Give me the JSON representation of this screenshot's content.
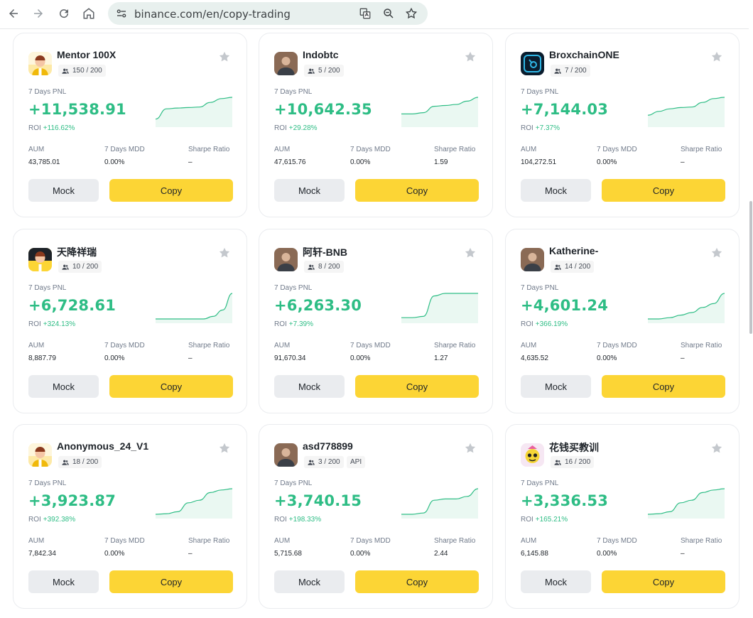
{
  "browser": {
    "url": "binance.com/en/copy-trading"
  },
  "labels": {
    "pnl": "7 Days PNL",
    "roi": "ROI",
    "aum": "AUM",
    "mdd": "7 Days MDD",
    "sharpe": "Sharpe Ratio",
    "mock": "Mock",
    "copy": "Copy"
  },
  "colors": {
    "profit": "#2ebd85",
    "copy_button": "#fcd535",
    "mock_button": "#eaecef"
  },
  "traders": [
    {
      "name": "Mentor 100X",
      "followers": "150 / 200",
      "pnl": "+11,538.91",
      "roi": "+116.62%",
      "aum": "43,785.01",
      "mdd": "0.00%",
      "sharpe": "–",
      "avatar": "default-avatar",
      "trend": [
        0.15,
        0.55,
        0.58,
        0.6,
        0.62,
        0.8,
        0.95,
        1.0
      ]
    },
    {
      "name": "Indobtc",
      "followers": "5 / 200",
      "pnl": "+10,642.35",
      "roi": "+29.28%",
      "aum": "47,615.76",
      "mdd": "0.00%",
      "sharpe": "1.59",
      "avatar": "photo-avatar",
      "trend": [
        0.35,
        0.35,
        0.4,
        0.65,
        0.68,
        0.72,
        0.85,
        1.0
      ]
    },
    {
      "name": "BroxchainONE",
      "followers": "7 / 200",
      "pnl": "+7,144.03",
      "roi": "+7.37%",
      "aum": "104,272.51",
      "mdd": "0.00%",
      "sharpe": "–",
      "avatar": "logo-avatar",
      "trend": [
        0.3,
        0.45,
        0.55,
        0.6,
        0.62,
        0.8,
        0.95,
        1.0
      ]
    },
    {
      "name": "天降祥瑞",
      "followers": "10 / 200",
      "pnl": "+6,728.61",
      "roi": "+324.13%",
      "aum": "8,887.79",
      "mdd": "0.00%",
      "sharpe": "–",
      "avatar": "default-avatar-dark",
      "trend": [
        0,
        0,
        0,
        0,
        0,
        0,
        0.1,
        0.35,
        1.0
      ]
    },
    {
      "name": "阿轩-BNB",
      "followers": "8 / 200",
      "pnl": "+6,263.30",
      "roi": "+7.39%",
      "aum": "91,670.34",
      "mdd": "0.00%",
      "sharpe": "1.27",
      "avatar": "photo-avatar",
      "trend": [
        0.05,
        0.05,
        0.1,
        0.9,
        1.0,
        1.0,
        1.0,
        1.0
      ]
    },
    {
      "name": "Katherine-",
      "followers": "14 / 200",
      "pnl": "+4,601.24",
      "roi": "+366.19%",
      "aum": "4,635.52",
      "mdd": "0.00%",
      "sharpe": "–",
      "avatar": "photo-avatar",
      "trend": [
        0,
        0,
        0.05,
        0.15,
        0.25,
        0.45,
        0.6,
        1.0
      ]
    },
    {
      "name": "Anonymous_24_V1",
      "followers": "18 / 200",
      "pnl": "+3,923.87",
      "roi": "+392.38%",
      "aum": "7,842.34",
      "mdd": "0.00%",
      "sharpe": "–",
      "avatar": "default-avatar",
      "trend": [
        0,
        0.02,
        0.1,
        0.45,
        0.55,
        0.85,
        0.95,
        1.0
      ]
    },
    {
      "name": "asd778899",
      "followers": "3 / 200",
      "api": "API",
      "pnl": "+3,740.15",
      "roi": "+198.33%",
      "aum": "5,715.68",
      "mdd": "0.00%",
      "sharpe": "2.44",
      "avatar": "photo-avatar",
      "trend": [
        0,
        0,
        0.05,
        0.55,
        0.6,
        0.6,
        0.7,
        1.0
      ]
    },
    {
      "name": "花钱买教训",
      "followers": "16 / 200",
      "pnl": "+3,336.53",
      "roi": "+165.21%",
      "aum": "6,145.88",
      "mdd": "0.00%",
      "sharpe": "–",
      "avatar": "cartoon-avatar",
      "trend": [
        0,
        0.02,
        0.1,
        0.45,
        0.55,
        0.85,
        0.95,
        1.0
      ]
    }
  ]
}
